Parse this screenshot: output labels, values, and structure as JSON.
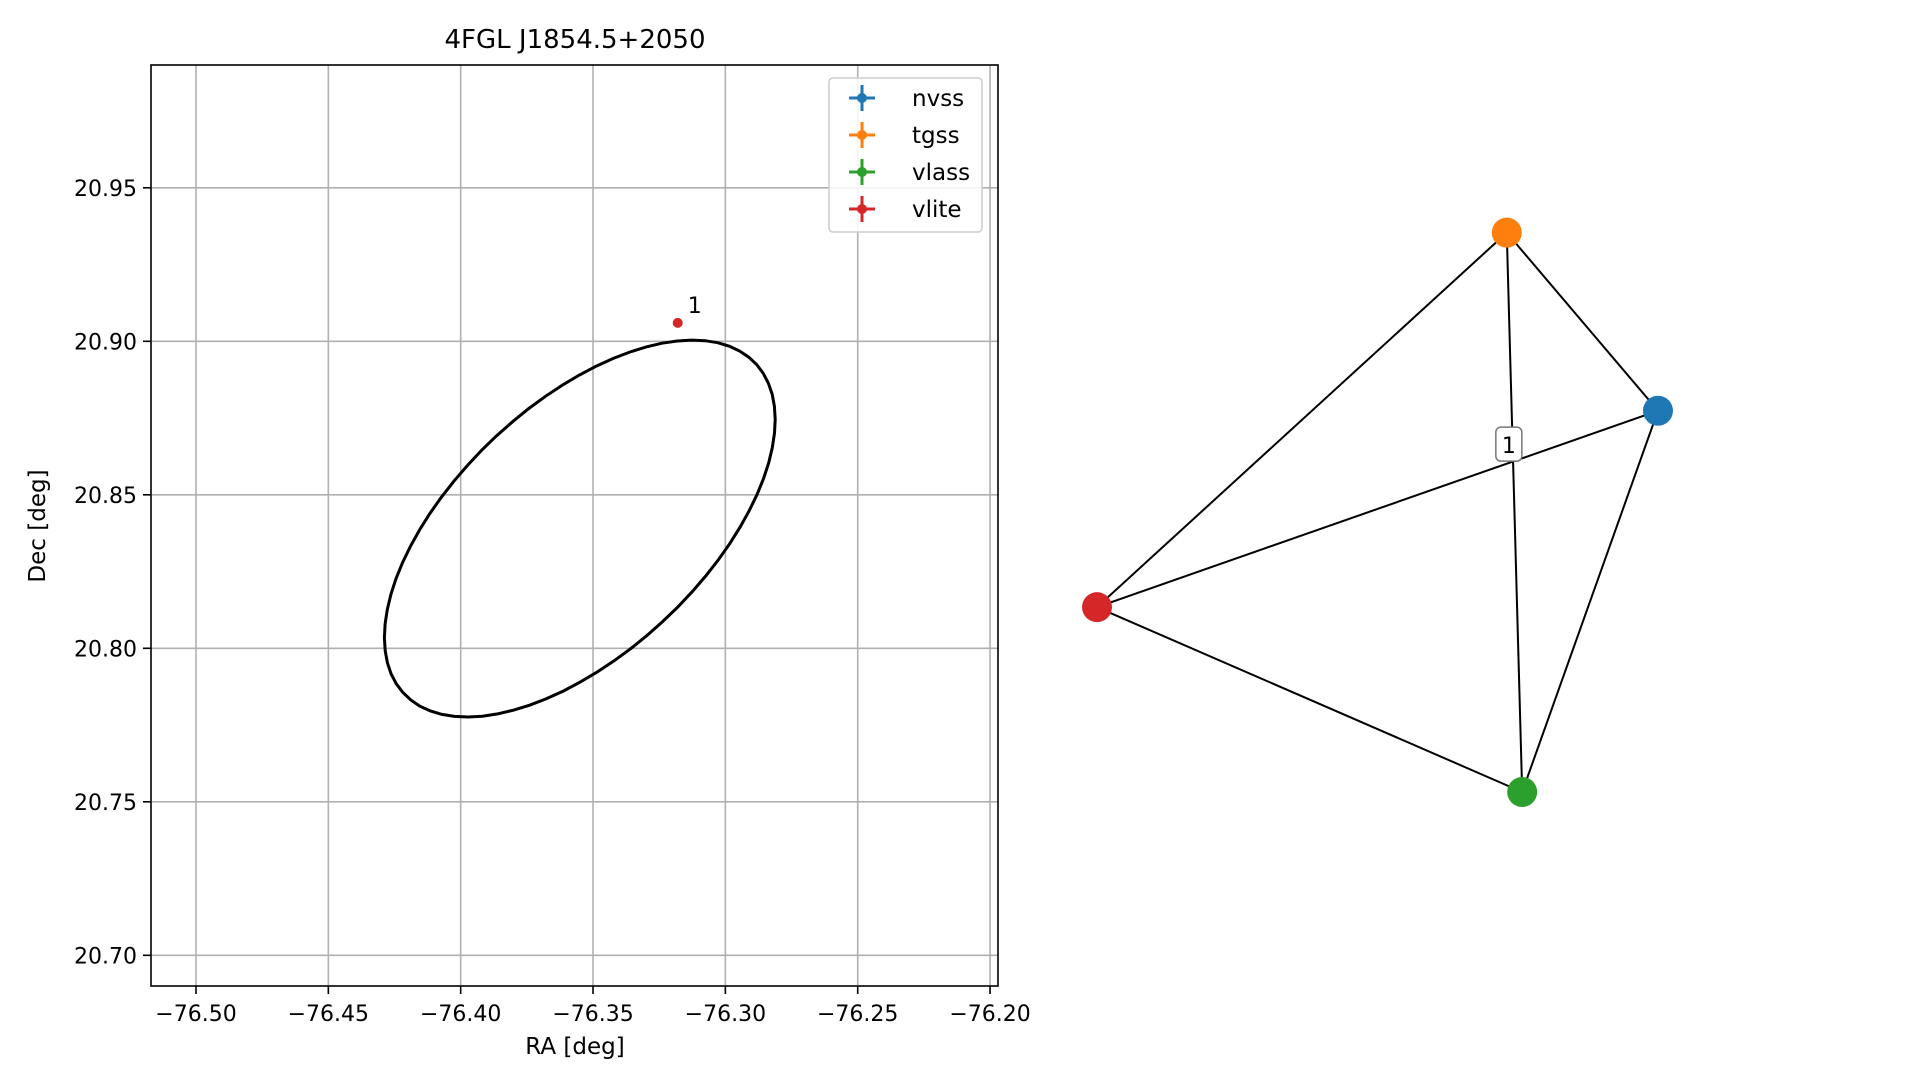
{
  "chart_data": [
    {
      "type": "scatter",
      "title": "4FGL J1854.5+2050",
      "xlabel": "RA [deg]",
      "ylabel": "Dec [deg]",
      "xlim": [
        -76.517,
        -76.197
      ],
      "ylim": [
        20.69,
        20.99
      ],
      "xticks": [
        -76.5,
        -76.45,
        -76.4,
        -76.35,
        -76.3,
        -76.25,
        -76.2
      ],
      "xtick_labels": [
        "−76.50",
        "−76.45",
        "−76.40",
        "−76.35",
        "−76.30",
        "−76.25",
        "−76.20"
      ],
      "yticks": [
        20.7,
        20.75,
        20.8,
        20.85,
        20.9,
        20.95
      ],
      "ytick_labels": [
        "20.70",
        "20.75",
        "20.80",
        "20.85",
        "20.90",
        "20.95"
      ],
      "grid": true,
      "legend_position": "top-right",
      "series": [
        {
          "name": "nvss",
          "color": "#1f77b4",
          "points": []
        },
        {
          "name": "tgss",
          "color": "#ff7f0e",
          "points": []
        },
        {
          "name": "vlass",
          "color": "#2ca02c",
          "points": []
        },
        {
          "name": "vlite",
          "color": "#d62728",
          "points": [
            {
              "x": -76.318,
              "y": 20.906,
              "label": "1"
            }
          ]
        }
      ],
      "ellipse": {
        "center": [
          -76.355,
          20.839
        ],
        "semi_major": 0.0858,
        "semi_minor": 0.0431,
        "angle_deg": 36.1,
        "color": "#000000"
      }
    },
    {
      "type": "network",
      "nodes": [
        {
          "id": "nvss",
          "color": "#1f77b4",
          "x": 0.946,
          "y": 0.621
        },
        {
          "id": "tgss",
          "color": "#ff7f0e",
          "x": 0.691,
          "y": 0.911
        },
        {
          "id": "vlass",
          "color": "#2ca02c",
          "x": 0.717,
          "y": 0.0
        },
        {
          "id": "vlite",
          "color": "#d62728",
          "x": 0.0,
          "y": 0.301
        }
      ],
      "edges": [
        {
          "source": "vlite",
          "target": "tgss"
        },
        {
          "source": "vlite",
          "target": "nvss"
        },
        {
          "source": "vlite",
          "target": "vlass"
        },
        {
          "source": "tgss",
          "target": "nvss"
        },
        {
          "source": "tgss",
          "target": "vlass"
        },
        {
          "source": "nvss",
          "target": "vlass"
        }
      ],
      "edge_labels": [
        {
          "source": "vlite",
          "target": "nvss",
          "label": "1"
        }
      ]
    }
  ]
}
